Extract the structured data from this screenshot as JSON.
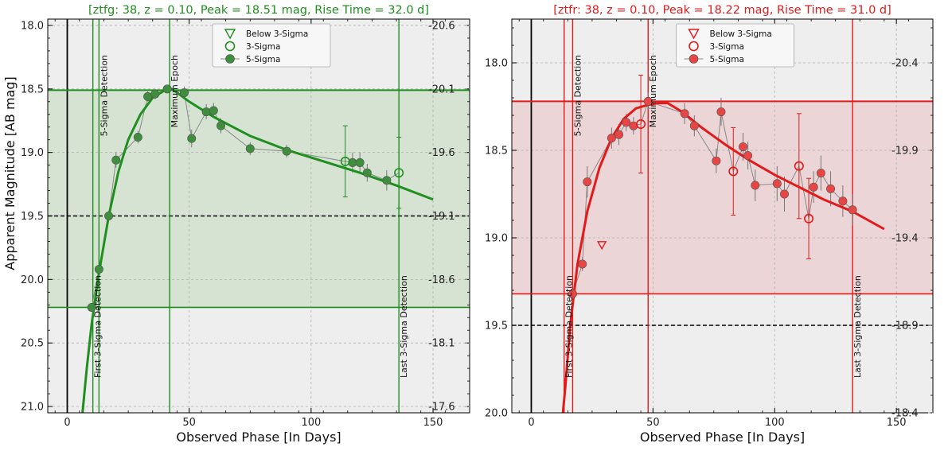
{
  "page": {
    "ylabel_shared": "Apparent Magnitude [AB mag]"
  },
  "chart_data": [
    {
      "type": "scatter",
      "title": "[ztfg: 38, z = 0.10, Peak = 18.51 mag, Rise Time = 32.0 d]",
      "title_color": "#1f8f1f",
      "color": "#1f8f1f",
      "marker_fill": "#3e8e3e",
      "band_fill": "#d6e3d3",
      "xlabel": "Observed Phase [In Days]",
      "ylabel": "Apparent Magnitude [AB mag]",
      "xlim": [
        -8,
        165
      ],
      "ylim": [
        21.05,
        17.95
      ],
      "yticks": [
        18.0,
        18.5,
        19.0,
        19.5,
        20.0,
        20.5,
        21.0
      ],
      "xticks": [
        0,
        50,
        100,
        150
      ],
      "right_ticks": [
        {
          "mag": 18.0,
          "label": "-20.6"
        },
        {
          "mag": 18.5,
          "label": "-20.1"
        },
        {
          "mag": 19.0,
          "label": "-19.6"
        },
        {
          "mag": 19.5,
          "label": "-19.1"
        },
        {
          "mag": 20.0,
          "label": "-18.6"
        },
        {
          "mag": 20.5,
          "label": "-18.1"
        },
        {
          "mag": 21.0,
          "label": "-17.6"
        }
      ],
      "peak_mag": 18.51,
      "limit_mag": 20.22,
      "threshold_mag": 19.5,
      "vlines": [
        {
          "x": 10.5,
          "label": "First 3-Sigma Detection",
          "pos": "bottom"
        },
        {
          "x": 13.0,
          "label": "5-Sigma Detection",
          "pos": "top"
        },
        {
          "x": 42.0,
          "label": "Maximum Epoch",
          "pos": "top"
        },
        {
          "x": 136.0,
          "label": "Last 3-Sigma Detection",
          "pos": "bottom"
        }
      ],
      "legend": [
        "Below 3-Sigma",
        "3-Sigma",
        "5-Sigma"
      ],
      "points_5sigma": [
        {
          "x": 10,
          "y": 20.22,
          "err": 0.03
        },
        {
          "x": 13,
          "y": 19.92,
          "err": 0.03
        },
        {
          "x": 17,
          "y": 19.5,
          "err": 0.04
        },
        {
          "x": 20,
          "y": 19.06,
          "err": 0.06
        },
        {
          "x": 29,
          "y": 18.88,
          "err": 0.05
        },
        {
          "x": 33,
          "y": 18.56,
          "err": 0.04
        },
        {
          "x": 36,
          "y": 18.54,
          "err": 0.04
        },
        {
          "x": 41,
          "y": 18.5,
          "err": 0.03
        },
        {
          "x": 48,
          "y": 18.53,
          "err": 0.05
        },
        {
          "x": 51,
          "y": 18.89,
          "err": 0.07
        },
        {
          "x": 57,
          "y": 18.68,
          "err": 0.06
        },
        {
          "x": 60,
          "y": 18.67,
          "err": 0.06
        },
        {
          "x": 63,
          "y": 18.79,
          "err": 0.06
        },
        {
          "x": 75,
          "y": 18.97,
          "err": 0.05
        },
        {
          "x": 90,
          "y": 18.99,
          "err": 0.05
        },
        {
          "x": 117,
          "y": 19.08,
          "err": 0.08
        },
        {
          "x": 120,
          "y": 19.08,
          "err": 0.08
        },
        {
          "x": 123,
          "y": 19.16,
          "err": 0.07
        },
        {
          "x": 131,
          "y": 19.22,
          "err": 0.08
        }
      ],
      "points_3sigma": [
        {
          "x": 114,
          "y": 19.07,
          "err": 0.28
        },
        {
          "x": 136,
          "y": 19.16,
          "err": 0.28
        }
      ],
      "points_below": [],
      "fit_curve": [
        {
          "x": 4,
          "y": 21.2
        },
        {
          "x": 6,
          "y": 21.1
        },
        {
          "x": 8,
          "y": 20.7
        },
        {
          "x": 10,
          "y": 20.35
        },
        {
          "x": 13,
          "y": 19.95
        },
        {
          "x": 17,
          "y": 19.5
        },
        {
          "x": 21,
          "y": 19.15
        },
        {
          "x": 25,
          "y": 18.9
        },
        {
          "x": 30,
          "y": 18.7
        },
        {
          "x": 35,
          "y": 18.57
        },
        {
          "x": 40,
          "y": 18.51
        },
        {
          "x": 43,
          "y": 18.5
        },
        {
          "x": 50,
          "y": 18.6
        },
        {
          "x": 60,
          "y": 18.72
        },
        {
          "x": 75,
          "y": 18.87
        },
        {
          "x": 90,
          "y": 18.98
        },
        {
          "x": 105,
          "y": 19.07
        },
        {
          "x": 120,
          "y": 19.16
        },
        {
          "x": 135,
          "y": 19.26
        },
        {
          "x": 150,
          "y": 19.37
        }
      ]
    },
    {
      "type": "scatter",
      "title": "[ztfr: 38, z = 0.10, Peak = 18.22 mag, Rise Time = 31.0 d]",
      "title_color": "#e31a1a",
      "color": "#e31a1a",
      "marker_fill": "#e84545",
      "band_fill": "#ecd5d7",
      "xlabel": "Observed Phase [In Days]",
      "ylabel": "",
      "xlim": [
        -8,
        165
      ],
      "ylim": [
        20.0,
        17.75
      ],
      "yticks": [
        18.0,
        18.5,
        19.0,
        19.5,
        20.0
      ],
      "xticks": [
        0,
        50,
        100,
        150
      ],
      "right_ticks": [
        {
          "mag": 18.0,
          "label": "-20.4"
        },
        {
          "mag": 18.5,
          "label": "-19.9"
        },
        {
          "mag": 19.0,
          "label": "-19.4"
        },
        {
          "mag": 19.5,
          "label": "-18.9"
        },
        {
          "mag": 20.0,
          "label": "-18.4"
        }
      ],
      "peak_mag": 18.22,
      "limit_mag": 19.32,
      "threshold_mag": 19.5,
      "vlines": [
        {
          "x": 13.5,
          "label": "First 3-Sigma Detection",
          "pos": "bottom"
        },
        {
          "x": 17.0,
          "label": "5-Sigma Detection",
          "pos": "top"
        },
        {
          "x": 48.0,
          "label": "Maximum Epoch",
          "pos": "top"
        },
        {
          "x": 132.0,
          "label": "Last 3-Sigma Detection",
          "pos": "bottom"
        }
      ],
      "legend": [
        "Below 3-Sigma",
        "3-Sigma",
        "5-Sigma"
      ],
      "points_5sigma": [
        {
          "x": 17,
          "y": 19.32,
          "err": 0.03
        },
        {
          "x": 21,
          "y": 19.15,
          "err": 0.04
        },
        {
          "x": 23,
          "y": 18.68,
          "err": 0.09
        },
        {
          "x": 33,
          "y": 18.43,
          "err": 0.06
        },
        {
          "x": 36,
          "y": 18.41,
          "err": 0.06
        },
        {
          "x": 39,
          "y": 18.34,
          "err": 0.05
        },
        {
          "x": 42,
          "y": 18.36,
          "err": 0.05
        },
        {
          "x": 48,
          "y": 18.22,
          "err": 0.05
        },
        {
          "x": 63,
          "y": 18.29,
          "err": 0.06
        },
        {
          "x": 67,
          "y": 18.36,
          "err": 0.06
        },
        {
          "x": 76,
          "y": 18.56,
          "err": 0.07
        },
        {
          "x": 78,
          "y": 18.28,
          "err": 0.08
        },
        {
          "x": 87,
          "y": 18.48,
          "err": 0.08
        },
        {
          "x": 89,
          "y": 18.53,
          "err": 0.08
        },
        {
          "x": 92,
          "y": 18.7,
          "err": 0.09
        },
        {
          "x": 101,
          "y": 18.69,
          "err": 0.1
        },
        {
          "x": 104,
          "y": 18.75,
          "err": 0.1
        },
        {
          "x": 116,
          "y": 18.71,
          "err": 0.09
        },
        {
          "x": 119,
          "y": 18.63,
          "err": 0.1
        },
        {
          "x": 123,
          "y": 18.72,
          "err": 0.1
        },
        {
          "x": 128,
          "y": 18.79,
          "err": 0.09
        },
        {
          "x": 132,
          "y": 18.84,
          "err": 0.09
        }
      ],
      "points_3sigma": [
        {
          "x": 45,
          "y": 18.35,
          "err": 0.28
        },
        {
          "x": 83,
          "y": 18.62,
          "err": 0.25
        },
        {
          "x": 110,
          "y": 18.59,
          "err": 0.3
        },
        {
          "x": 114,
          "y": 18.89,
          "err": 0.23
        }
      ],
      "points_below": [
        {
          "x": 29,
          "y": 19.04
        }
      ],
      "fit_curve": [
        {
          "x": 13,
          "y": 20.0
        },
        {
          "x": 14,
          "y": 19.85
        },
        {
          "x": 16,
          "y": 19.5
        },
        {
          "x": 19,
          "y": 19.15
        },
        {
          "x": 23,
          "y": 18.85
        },
        {
          "x": 28,
          "y": 18.6
        },
        {
          "x": 33,
          "y": 18.43
        },
        {
          "x": 38,
          "y": 18.32
        },
        {
          "x": 43,
          "y": 18.26
        },
        {
          "x": 48,
          "y": 18.24
        },
        {
          "x": 52,
          "y": 18.23
        },
        {
          "x": 56,
          "y": 18.23
        },
        {
          "x": 62,
          "y": 18.28
        },
        {
          "x": 70,
          "y": 18.37
        },
        {
          "x": 80,
          "y": 18.47
        },
        {
          "x": 90,
          "y": 18.56
        },
        {
          "x": 100,
          "y": 18.64
        },
        {
          "x": 110,
          "y": 18.71
        },
        {
          "x": 120,
          "y": 18.78
        },
        {
          "x": 132,
          "y": 18.85
        },
        {
          "x": 145,
          "y": 18.95
        }
      ]
    }
  ]
}
